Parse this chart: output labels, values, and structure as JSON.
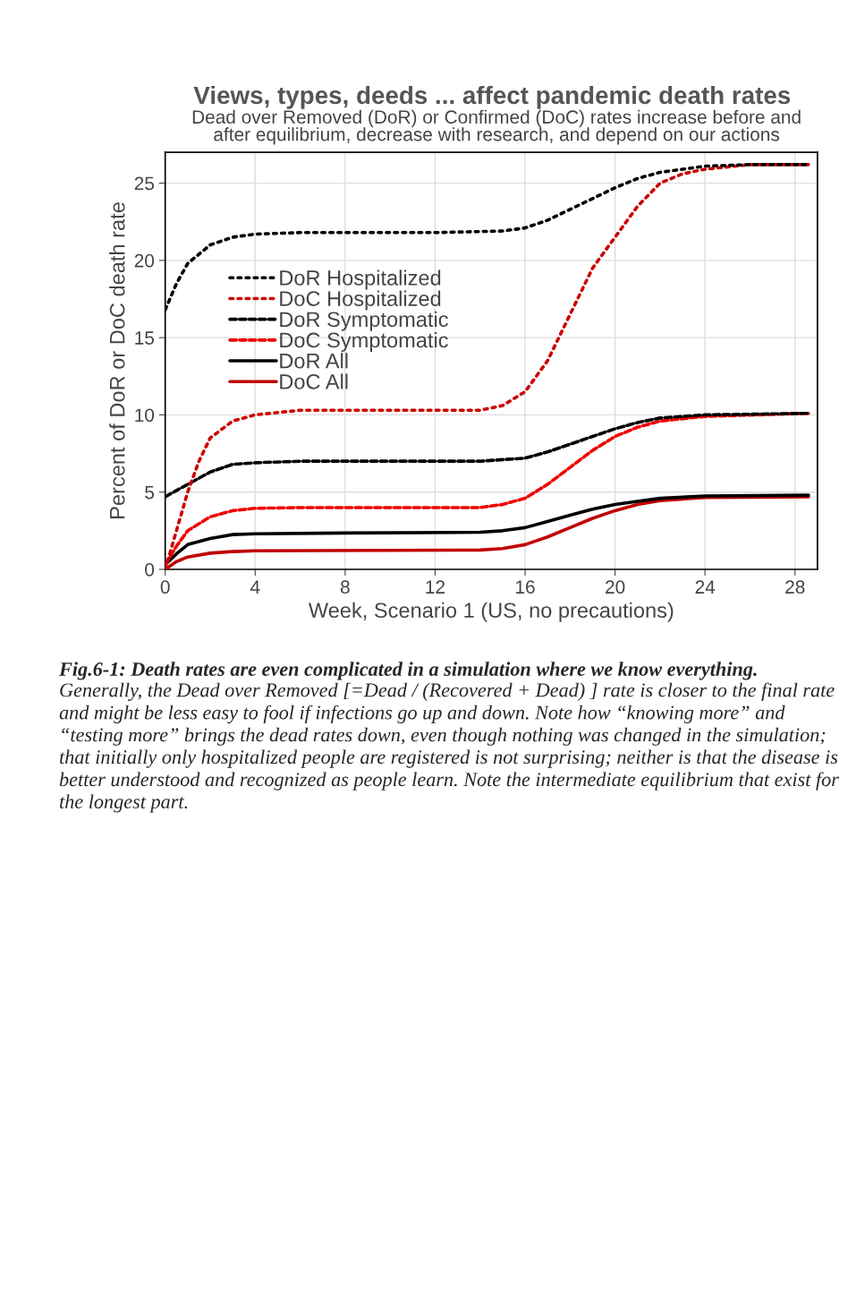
{
  "chart_data": {
    "type": "line",
    "title": "Views, types, deeds ... affect pandemic death rates",
    "subtitle": "Dead over Removed (DoR) or Confirmed (DoC) rates increase before and\nafter equilibrium, decrease with research, and depend on our actions",
    "xlabel": "Week, Scenario 1 (US, no precautions)",
    "ylabel": "Percent of DoR or DoC death rate",
    "xlim": [
      0,
      29
    ],
    "xticks": [
      0,
      4,
      8,
      12,
      16,
      20,
      24,
      28
    ],
    "ylim": [
      0,
      27
    ],
    "yticks": [
      0,
      5,
      10,
      15,
      20,
      25
    ],
    "grid": true,
    "legend": "left",
    "series": [
      {
        "name": "DoR Hospitalized",
        "color": "#000000",
        "line_style": "dotted",
        "x": [
          0,
          0.5,
          1,
          2,
          3,
          4,
          6,
          12,
          15,
          16,
          17,
          18,
          19,
          20,
          21,
          22,
          24,
          26,
          28.6
        ],
        "values": [
          16.8,
          18.5,
          19.8,
          21.0,
          21.5,
          21.7,
          21.8,
          21.8,
          21.9,
          22.1,
          22.6,
          23.3,
          24.0,
          24.7,
          25.3,
          25.7,
          26.1,
          26.2,
          26.2
        ]
      },
      {
        "name": "DoC Hospitalized",
        "color": "#cc0000",
        "line_style": "dotted",
        "x": [
          0,
          0.5,
          1,
          1.5,
          2,
          3,
          4,
          6,
          14,
          15,
          16,
          17,
          18,
          19,
          20,
          21,
          22,
          23,
          24,
          26,
          28.6
        ],
        "values": [
          0,
          2.5,
          5,
          7,
          8.5,
          9.6,
          10.0,
          10.3,
          10.3,
          10.6,
          11.5,
          13.5,
          16.5,
          19.5,
          21.5,
          23.5,
          25.0,
          25.6,
          25.9,
          26.2,
          26.2
        ]
      },
      {
        "name": "DoR Symptomatic",
        "color": "#000000",
        "line_style": "dashed",
        "x": [
          0,
          1,
          2,
          3,
          4,
          6,
          14,
          16,
          17,
          18,
          19,
          20,
          21,
          22,
          24,
          28.6
        ],
        "values": [
          4.7,
          5.5,
          6.3,
          6.8,
          6.9,
          7.0,
          7.0,
          7.2,
          7.6,
          8.1,
          8.6,
          9.1,
          9.5,
          9.8,
          10.0,
          10.1
        ]
      },
      {
        "name": "DoC Symptomatic",
        "color": "#ee0000",
        "line_style": "dashed",
        "x": [
          0,
          0.5,
          1,
          2,
          3,
          4,
          6,
          14,
          15,
          16,
          17,
          18,
          19,
          20,
          21,
          22,
          24,
          28.6
        ],
        "values": [
          0.3,
          1.5,
          2.5,
          3.4,
          3.8,
          3.95,
          4.0,
          4.0,
          4.2,
          4.6,
          5.5,
          6.6,
          7.7,
          8.6,
          9.2,
          9.6,
          9.9,
          10.1
        ]
      },
      {
        "name": "DoR All",
        "color": "#000000",
        "line_style": "solid",
        "x": [
          0,
          0.5,
          1,
          2,
          3,
          4,
          8,
          14,
          15,
          16,
          17,
          18,
          19,
          20,
          21,
          22,
          24,
          28.6
        ],
        "values": [
          0.3,
          1.0,
          1.6,
          2.0,
          2.25,
          2.3,
          2.35,
          2.4,
          2.5,
          2.7,
          3.1,
          3.5,
          3.9,
          4.2,
          4.4,
          4.6,
          4.75,
          4.8
        ]
      },
      {
        "name": "DoC All",
        "color": "#c00000",
        "line_style": "solid",
        "x": [
          0,
          0.5,
          1,
          2,
          3,
          4,
          14,
          15,
          16,
          17,
          18,
          19,
          20,
          21,
          22,
          24,
          28.6
        ],
        "values": [
          0,
          0.5,
          0.8,
          1.05,
          1.15,
          1.2,
          1.25,
          1.35,
          1.6,
          2.1,
          2.7,
          3.3,
          3.8,
          4.2,
          4.45,
          4.65,
          4.7
        ]
      }
    ],
    "annotations": [
      "Fig.6-1: Death rates are even complicated in a simulation where we know everything.",
      "Generally, the Dead over Removed [=Dead / (Recovered + Dead) ] rate is closer to the final rate and might be less easy to fool if infections go up and down. Note how “knowing more” and “testing more” brings the dead rates down, even though nothing was changed in the simulation; that initially only hospitalized people are registered is not surprising; neither is that the disease is better understood and recognized as people learn. Note the intermediate equilibrium that exist for the longest part."
    ]
  }
}
